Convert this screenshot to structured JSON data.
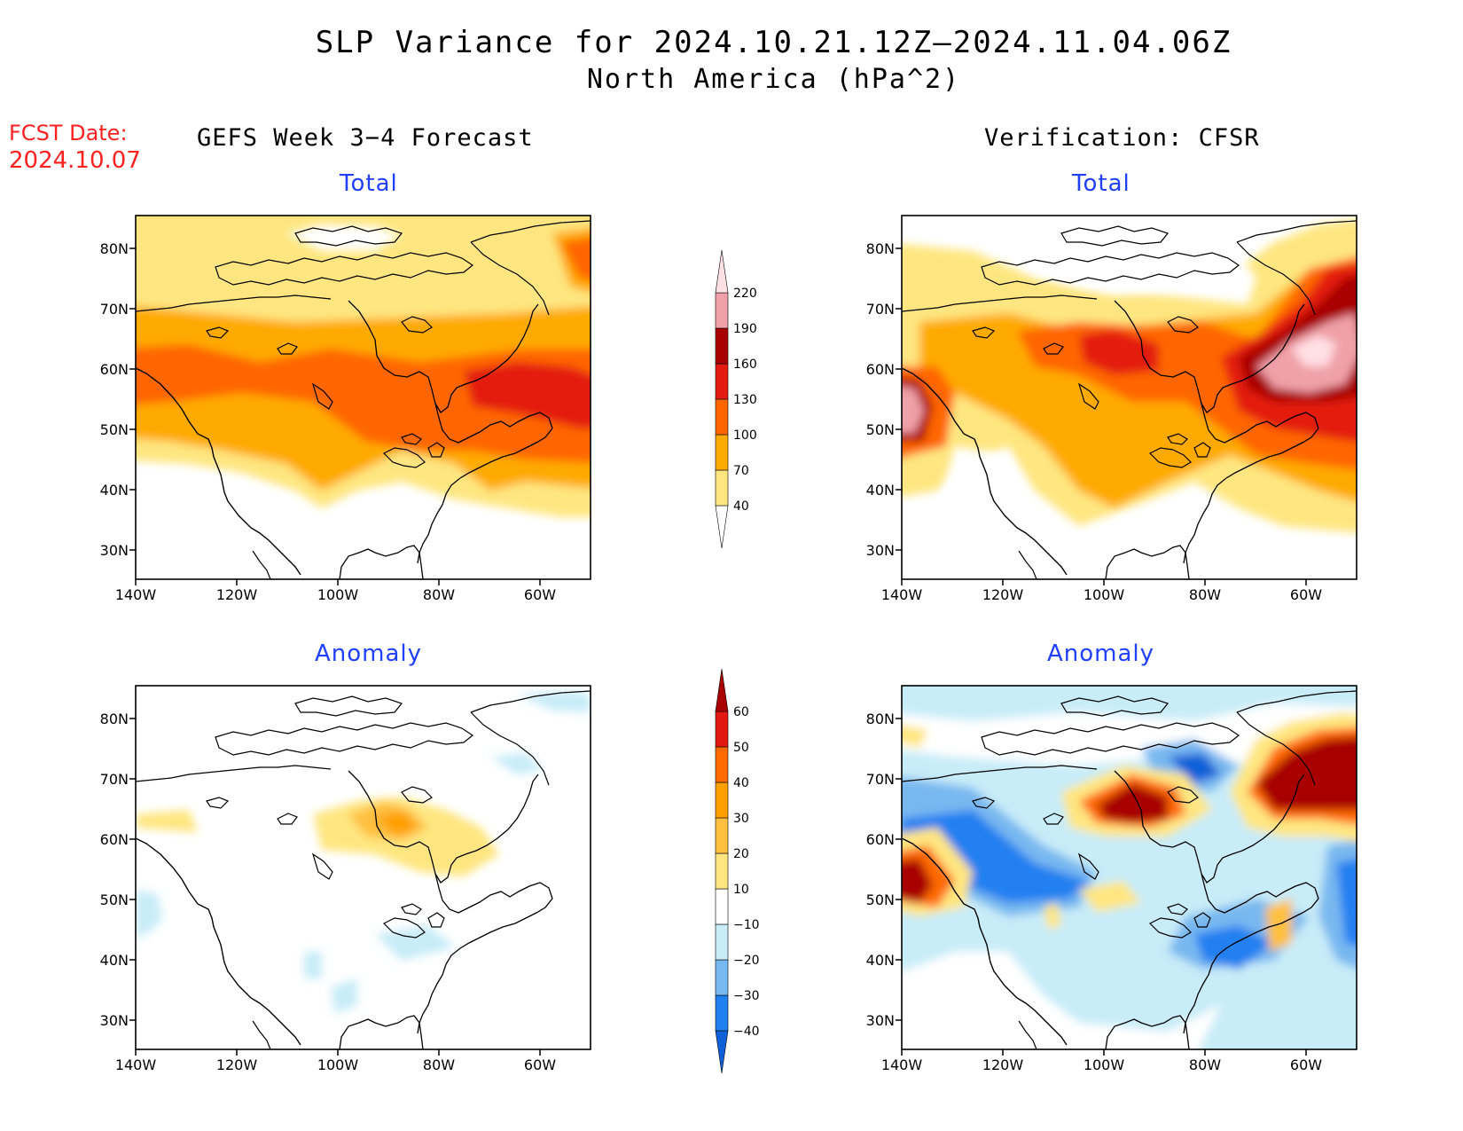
{
  "title": "SLP Variance for 2024.10.21.12Z–2024.11.04.06Z",
  "subtitle": "North America (hPa^2)",
  "fcst_date_label": "FCST Date:",
  "fcst_date_value": "2024.10.07",
  "columns": {
    "left": "GEFS Week 3−4 Forecast",
    "right": "Verification: CFSR"
  },
  "panel_titles": {
    "total": "Total",
    "anomaly": "Anomaly"
  },
  "axes": {
    "lat_labels": [
      "80N",
      "70N",
      "60N",
      "50N",
      "40N",
      "30N"
    ],
    "lon_labels": [
      "140W",
      "120W",
      "100W",
      "80W",
      "60W"
    ]
  },
  "colorbars": {
    "total": {
      "levels": [
        "40",
        "70",
        "100",
        "130",
        "160",
        "190",
        "220"
      ],
      "colors": [
        "#ffffff",
        "#ffe680",
        "#ffaa00",
        "#ff6600",
        "#e31a10",
        "#a80000",
        "#f0a0a8",
        "#ffe0e4"
      ]
    },
    "anomaly": {
      "levels": [
        "−40",
        "−30",
        "−20",
        "−10",
        "10",
        "20",
        "30",
        "40",
        "50",
        "60"
      ],
      "colors": [
        "#1060d8",
        "#2080f0",
        "#78b8f0",
        "#c8ecf8",
        "#ffffff",
        "#ffe680",
        "#ffc040",
        "#ffa000",
        "#ff6a00",
        "#e01810",
        "#a80000"
      ]
    }
  },
  "maps": {
    "gefs_total": {
      "label": "GEFS total map"
    },
    "cfsr_total": {
      "label": "CFSR total map"
    },
    "gefs_anom": {
      "label": "GEFS anomaly map"
    },
    "cfsr_anom": {
      "label": "CFSR anomaly map"
    }
  }
}
